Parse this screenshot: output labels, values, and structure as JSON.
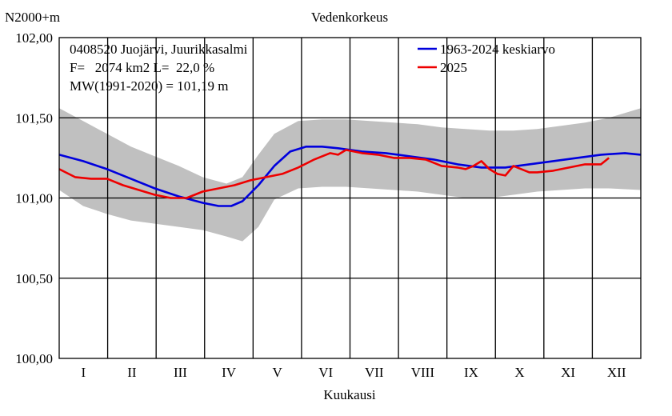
{
  "chart_data": {
    "type": "line",
    "title": "Vedenkorkeus",
    "ylabel": "N2000+m",
    "xlabel": "Kuukausi",
    "ylim": [
      100.0,
      102.0
    ],
    "xlim": [
      0,
      365
    ],
    "y_ticks": [
      "100,00",
      "100,50",
      "101,00",
      "101,50",
      "102,00"
    ],
    "y_tick_values": [
      100.0,
      100.5,
      101.0,
      101.5,
      102.0
    ],
    "month_labels": [
      "I",
      "II",
      "III",
      "IV",
      "V",
      "VI",
      "VII",
      "VIII",
      "IX",
      "X",
      "XI",
      "XII"
    ],
    "info_lines": [
      "0408520 Juojärvi, Juurikkasalmi",
      "F=   2074 km2 L=  22,0 %",
      "MW(1991-2020) = 101,19 m"
    ],
    "band": {
      "name": "min-max range",
      "color": "#c0c0c0",
      "x": [
        0,
        15,
        30,
        45,
        60,
        75,
        90,
        105,
        115,
        125,
        135,
        150,
        165,
        180,
        195,
        210,
        225,
        240,
        255,
        270,
        285,
        300,
        315,
        330,
        345,
        365
      ],
      "upper": [
        101.56,
        101.48,
        101.4,
        101.32,
        101.26,
        101.2,
        101.13,
        101.09,
        101.13,
        101.27,
        101.4,
        101.48,
        101.49,
        101.49,
        101.48,
        101.47,
        101.46,
        101.44,
        101.43,
        101.42,
        101.42,
        101.43,
        101.45,
        101.47,
        101.5,
        101.56
      ],
      "lower": [
        101.05,
        100.95,
        100.9,
        100.86,
        100.84,
        100.82,
        100.8,
        100.76,
        100.73,
        100.82,
        100.99,
        101.06,
        101.07,
        101.07,
        101.06,
        101.05,
        101.04,
        101.02,
        101.0,
        101.0,
        101.02,
        101.04,
        101.05,
        101.06,
        101.06,
        101.05
      ]
    },
    "series": [
      {
        "name": "1963-2024 keskiarvo",
        "color": "#0000dd",
        "x": [
          0,
          15,
          30,
          45,
          60,
          75,
          90,
          100,
          108,
          115,
          125,
          135,
          145,
          155,
          165,
          175,
          190,
          205,
          220,
          235,
          250,
          265,
          280,
          295,
          310,
          325,
          340,
          355,
          365
        ],
        "values": [
          101.27,
          101.23,
          101.18,
          101.12,
          101.06,
          101.01,
          100.97,
          100.95,
          100.95,
          100.98,
          101.08,
          101.2,
          101.29,
          101.32,
          101.32,
          101.31,
          101.29,
          101.28,
          101.26,
          101.24,
          101.21,
          101.19,
          101.19,
          101.21,
          101.23,
          101.25,
          101.27,
          101.28,
          101.27
        ]
      },
      {
        "name": "2025",
        "color": "#ee0000",
        "x": [
          0,
          10,
          20,
          30,
          40,
          50,
          60,
          70,
          80,
          90,
          100,
          110,
          120,
          130,
          140,
          150,
          160,
          165,
          170,
          175,
          180,
          190,
          200,
          210,
          220,
          230,
          240,
          250,
          255,
          260,
          265,
          270,
          275,
          280,
          285,
          290,
          295,
          300,
          310,
          320,
          330,
          340,
          345
        ],
        "values": [
          101.18,
          101.13,
          101.12,
          101.12,
          101.08,
          101.05,
          101.02,
          101.0,
          101.0,
          101.04,
          101.06,
          101.08,
          101.11,
          101.13,
          101.15,
          101.19,
          101.24,
          101.26,
          101.28,
          101.27,
          101.3,
          101.28,
          101.27,
          101.25,
          101.25,
          101.24,
          101.2,
          101.19,
          101.18,
          101.2,
          101.23,
          101.18,
          101.15,
          101.14,
          101.2,
          101.18,
          101.16,
          101.16,
          101.17,
          101.19,
          101.21,
          101.21,
          101.25
        ]
      }
    ]
  }
}
